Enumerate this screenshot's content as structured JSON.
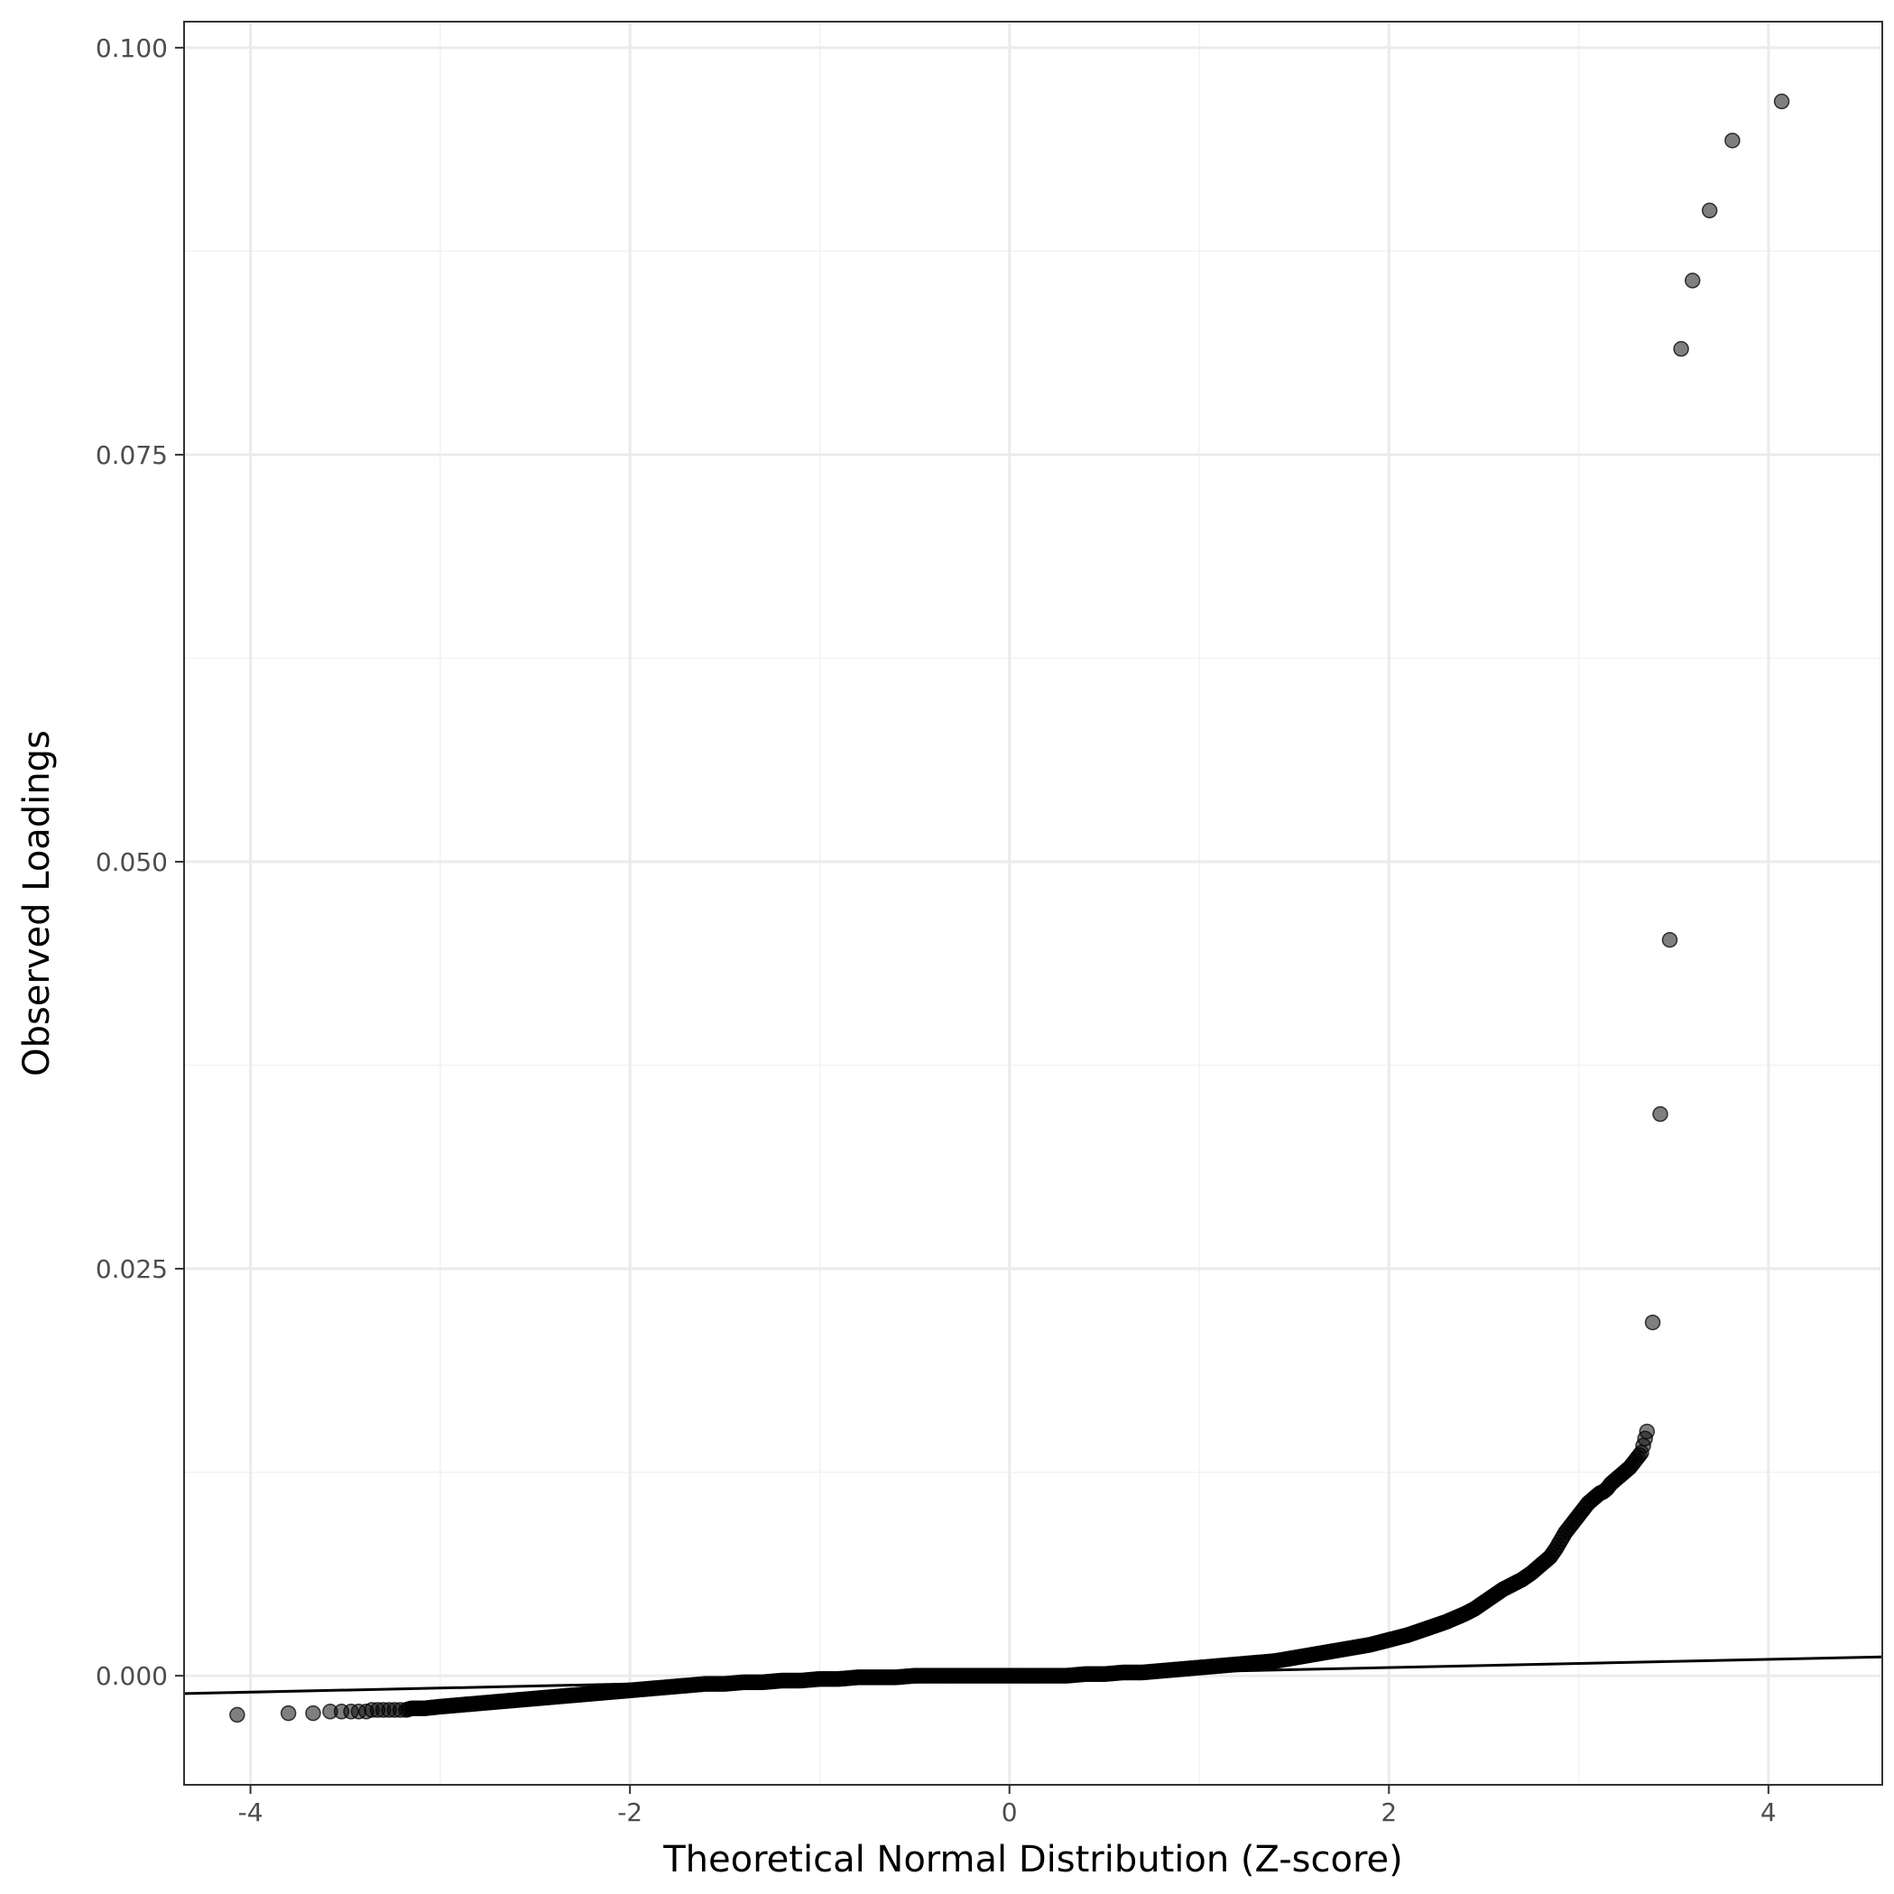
{
  "chart_data": {
    "type": "scatter",
    "title": "",
    "xlabel": "Theoretical Normal Distribution (Z-score)",
    "ylabel": "Observed Loadings",
    "xlim": [
      -4.35,
      4.6
    ],
    "ylim": [
      -0.0067,
      0.1016
    ],
    "x_ticks": [
      -4,
      -2,
      0,
      2,
      4
    ],
    "x_tick_labels": [
      "-4",
      "-2",
      "0",
      "2",
      "4"
    ],
    "y_ticks": [
      0.0,
      0.025,
      0.05,
      0.075,
      0.1
    ],
    "y_tick_labels": [
      "0.000",
      "0.025",
      "0.050",
      "0.075",
      "0.100"
    ],
    "grid": true,
    "reference_line": {
      "slope": 0.000252,
      "intercept": 0.0
    },
    "points": {
      "x": [
        -4.07,
        -3.8,
        -3.67,
        -3.58,
        -3.52,
        -3.47,
        -3.43,
        -3.39,
        -3.36,
        -3.33,
        -3.3,
        -3.27,
        -3.24,
        -3.21,
        -3.18,
        -3.15,
        -3.12,
        -3.08,
        -3.0,
        -2.9,
        -2.8,
        -2.7,
        -2.6,
        -2.5,
        -2.4,
        -2.3,
        -2.2,
        -2.1,
        -2.0,
        -1.9,
        -1.8,
        -1.7,
        -1.6,
        -1.5,
        -1.4,
        -1.3,
        -1.2,
        -1.1,
        -1.0,
        -0.9,
        -0.8,
        -0.7,
        -0.6,
        -0.5,
        -0.4,
        -0.3,
        -0.2,
        -0.1,
        0.0,
        0.1,
        0.2,
        0.3,
        0.4,
        0.5,
        0.6,
        0.7,
        0.8,
        0.9,
        1.0,
        1.1,
        1.2,
        1.3,
        1.4,
        1.5,
        1.6,
        1.7,
        1.8,
        1.9,
        2.0,
        2.1,
        2.2,
        2.3,
        2.4,
        2.45,
        2.5,
        2.55,
        2.6,
        2.65,
        2.7,
        2.75,
        2.8,
        2.85,
        2.88,
        2.91,
        2.93,
        2.95,
        2.97,
        2.99,
        3.01,
        3.03,
        3.05,
        3.07,
        3.09,
        3.11,
        3.13,
        3.15,
        3.17,
        3.19,
        3.21,
        3.23,
        3.25,
        3.27,
        3.29,
        3.31,
        3.33,
        3.36,
        3.39,
        3.43,
        3.48,
        3.54,
        3.6,
        3.69,
        3.81,
        4.07
      ],
      "y": [
        -0.0024,
        -0.0023,
        -0.0023,
        -0.0022,
        -0.0022,
        -0.0022,
        -0.0022,
        -0.0022,
        -0.0021,
        -0.0021,
        -0.0021,
        -0.0021,
        -0.0021,
        -0.0021,
        -0.0021,
        -0.002,
        -0.002,
        -0.002,
        -0.0019,
        -0.0018,
        -0.0017,
        -0.0016,
        -0.0015,
        -0.0014,
        -0.0013,
        -0.0012,
        -0.0011,
        -0.001,
        -0.0009,
        -0.0008,
        -0.0007,
        -0.0006,
        -0.0005,
        -0.0005,
        -0.0004,
        -0.0004,
        -0.0003,
        -0.0003,
        -0.0002,
        -0.0002,
        -0.0001,
        -0.0001,
        -0.0001,
        0.0,
        0.0,
        0.0,
        0.0,
        0.0,
        0.0,
        0.0,
        0.0,
        0.0,
        0.0001,
        0.0001,
        0.0002,
        0.0002,
        0.0003,
        0.0004,
        0.0005,
        0.0006,
        0.0007,
        0.0008,
        0.0009,
        0.0011,
        0.0013,
        0.0015,
        0.0017,
        0.0019,
        0.0022,
        0.0025,
        0.0029,
        0.0033,
        0.0038,
        0.0041,
        0.0045,
        0.0049,
        0.0053,
        0.0056,
        0.0059,
        0.0063,
        0.0068,
        0.0073,
        0.0078,
        0.0084,
        0.0088,
        0.0091,
        0.0094,
        0.0097,
        0.01,
        0.0103,
        0.0106,
        0.0108,
        0.011,
        0.0112,
        0.0113,
        0.0115,
        0.0118,
        0.012,
        0.0122,
        0.0124,
        0.0126,
        0.0128,
        0.0131,
        0.0134,
        0.0137,
        0.015,
        0.0217,
        0.0345,
        0.0452,
        0.0815,
        0.0857,
        0.09,
        0.0943,
        0.0967
      ]
    }
  }
}
